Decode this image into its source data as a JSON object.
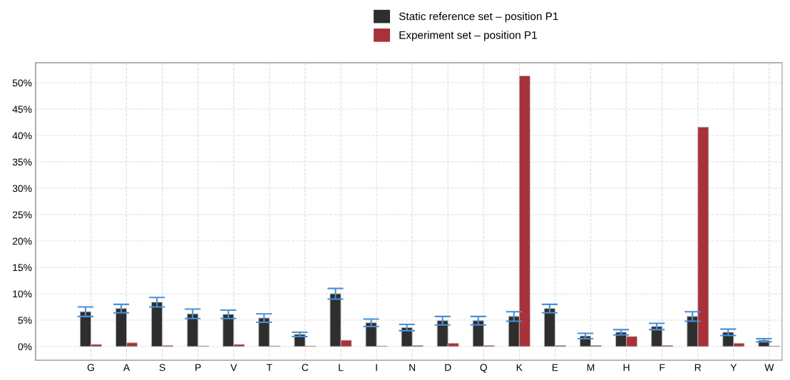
{
  "chart_data": {
    "type": "bar",
    "categories": [
      "G",
      "A",
      "S",
      "P",
      "V",
      "T",
      "C",
      "L",
      "I",
      "N",
      "D",
      "Q",
      "K",
      "E",
      "M",
      "H",
      "F",
      "R",
      "Y",
      "W"
    ],
    "series": [
      {
        "name": "Static reference set – position P1",
        "color": "#2e2e2e",
        "values": [
          6.6,
          7.2,
          8.4,
          6.2,
          6.1,
          5.4,
          2.3,
          10.0,
          4.5,
          3.6,
          4.9,
          4.9,
          5.7,
          7.2,
          2.0,
          2.7,
          3.8,
          5.7,
          2.7,
          1.2
        ],
        "errors": [
          0.9,
          0.8,
          0.9,
          0.9,
          0.8,
          0.8,
          0.4,
          1.0,
          0.7,
          0.6,
          0.8,
          0.8,
          0.9,
          0.8,
          0.5,
          0.5,
          0.6,
          0.9,
          0.6,
          0.3
        ]
      },
      {
        "name": "Experiment set – position P1",
        "color": "#a8323a",
        "values": [
          0.4,
          0.7,
          0.2,
          0.1,
          0.4,
          0.1,
          0.1,
          1.2,
          0.1,
          0.2,
          0.6,
          0.2,
          51.3,
          0.2,
          0.2,
          1.9,
          0.2,
          41.6,
          0.6,
          0.1
        ]
      }
    ],
    "ylim": [
      -2.6,
      53.8
    ],
    "yticks": [
      {
        "value": 0,
        "label": "0%"
      },
      {
        "value": 5,
        "label": "5%"
      },
      {
        "value": 10,
        "label": "10%"
      },
      {
        "value": 15,
        "label": "15%"
      },
      {
        "value": 20,
        "label": "20%"
      },
      {
        "value": 25,
        "label": "25%"
      },
      {
        "value": 30,
        "label": "30%"
      },
      {
        "value": 35,
        "label": "35%"
      },
      {
        "value": 40,
        "label": "40%"
      },
      {
        "value": 45,
        "label": "45%"
      },
      {
        "value": 50,
        "label": "50%"
      }
    ],
    "grid": true,
    "legend": "top"
  }
}
